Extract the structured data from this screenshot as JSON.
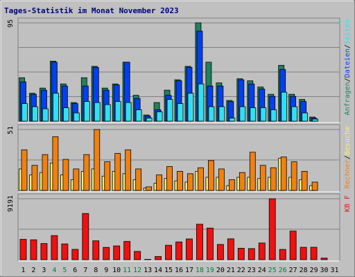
{
  "chart_data": [
    {
      "title": "Tages-Statistik im Monat November 2023",
      "type": "bar",
      "categories": [
        "1",
        "2",
        "3",
        "4",
        "5",
        "6",
        "7",
        "8",
        "9",
        "10",
        "11",
        "12",
        "13",
        "14",
        "15",
        "16",
        "17",
        "18",
        "19",
        "20",
        "21",
        "22",
        "23",
        "24",
        "25",
        "26",
        "27",
        "28",
        "29",
        "30",
        "31"
      ],
      "weekend_days": [
        "4",
        "5",
        "11",
        "12",
        "18",
        "19",
        "25",
        "26"
      ],
      "colors": {
        "text": "#000080",
        "weekend": "#008040",
        "Anfragen": "#208060",
        "Dateien": "#0040f0",
        "Seiten": "#30e0f0",
        "Rechner": "#f08010",
        "Besuche": "#f8f070",
        "KB F": "#f01010"
      },
      "panels": [
        {
          "name": "requests",
          "axis_max_label": "95",
          "ylim": [
            0,
            95
          ],
          "legend": [
            {
              "label": "Anfragen",
              "color": "#208060"
            },
            {
              "label": "Dateien",
              "color": "#0040f0"
            },
            {
              "label": "Seiten",
              "color": "#30e0f0"
            }
          ],
          "series": [
            {
              "name": "Anfragen",
              "values": [
                42,
                27,
                32,
                58,
                36,
                18,
                42,
                53,
                32,
                36,
                57,
                25,
                6,
                18,
                30,
                40,
                53,
                95,
                57,
                37,
                20,
                41,
                39,
                33,
                26,
                54,
                26,
                21,
                4,
                0,
                0
              ]
            },
            {
              "name": "Dateien",
              "values": [
                38,
                26,
                30,
                57,
                34,
                17,
                34,
                52,
                30,
                35,
                57,
                22,
                5,
                11,
                25,
                39,
                52,
                87,
                34,
                34,
                19,
                40,
                36,
                31,
                24,
                50,
                24,
                19,
                3,
                0,
                0
              ]
            },
            {
              "name": "Seiten",
              "values": [
                17,
                14,
                12,
                27,
                13,
                8,
                19,
                18,
                16,
                19,
                18,
                11,
                3,
                9,
                21,
                17,
                27,
                36,
                14,
                14,
                3,
                14,
                13,
                13,
                11,
                28,
                14,
                8,
                2,
                0,
                0
              ]
            }
          ]
        },
        {
          "name": "visits",
          "axis_max_label": "51",
          "ylim": [
            0,
            51
          ],
          "legend": [
            {
              "label": "Rechner",
              "color": "#f08010"
            },
            {
              "label": "Besuche",
              "color": "#f8f070"
            }
          ],
          "series": [
            {
              "name": "Rechner",
              "values": [
                34,
                21,
                30,
                45,
                26,
                18,
                30,
                51,
                24,
                31,
                34,
                18,
                3,
                13,
                20,
                16,
                14,
                19,
                25,
                18,
                9,
                15,
                32,
                21,
                19,
                28,
                24,
                16,
                7,
                0,
                0
              ]
            },
            {
              "name": "Besuche",
              "values": [
                18,
                13,
                15,
                23,
                13,
                9,
                16,
                18,
                12,
                16,
                14,
                9,
                2,
                6,
                10,
                8,
                7,
                16,
                11,
                11,
                4,
                11,
                11,
                10,
                11,
                27,
                11,
                9,
                4,
                0,
                0
              ]
            }
          ]
        },
        {
          "name": "traffic",
          "axis_max_label": "9191",
          "ylim": [
            0,
            9191
          ],
          "legend": [
            {
              "label": "KB F",
              "color": "#f01010"
            }
          ],
          "series": [
            {
              "name": "KB F",
              "values": [
                3076,
                3005,
                2440,
                3640,
                2380,
                1560,
                6970,
                2850,
                1860,
                2080,
                2755,
                1250,
                50,
                490,
                2180,
                2680,
                3130,
                5350,
                4770,
                2305,
                3150,
                1730,
                1680,
                2520,
                9191,
                1550,
                4320,
                1870,
                1880,
                240,
                0
              ]
            }
          ]
        }
      ]
    }
  ]
}
